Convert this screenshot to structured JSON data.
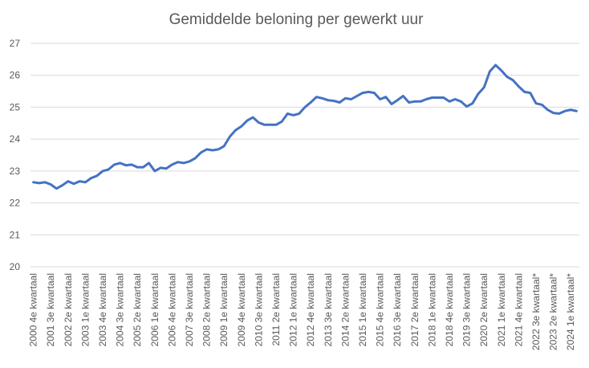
{
  "chart_data": {
    "type": "line",
    "title": "Gemiddelde beloning per gewerkt uur",
    "xlabel": "",
    "ylabel": "",
    "ylim": [
      20,
      27
    ],
    "yticks": [
      20,
      21,
      22,
      23,
      24,
      25,
      26,
      27
    ],
    "grid": true,
    "legend": "none",
    "color": "#4472C4",
    "x_start": "2000 4e kwartaal",
    "x_labels": [
      "2000 4e kwartaal",
      "2001 3e kwartaal",
      "2002 2e kwartaal",
      "2003 1e kwartaal",
      "2003 4e kwartaal",
      "2004 3e kwartaal",
      "2005 2e kwartaal",
      "2006 1e kwartaal",
      "2006 4e kwartaal",
      "2007 3e kwartaal",
      "2008 2e kwartaal",
      "2009 1e kwartaal",
      "2009 4e kwartaal",
      "2010 3e kwartaal",
      "2011 2e kwartaal",
      "2012 1e kwartaal",
      "2012 4e kwartaal",
      "2013 3e kwartaal",
      "2014 2e kwartaal",
      "2015 1e kwartaal",
      "2015 4e kwartaal",
      "2016 3e kwartaal",
      "2017 2e kwartaal",
      "2018 1e kwartaal",
      "2018 4e kwartaal",
      "2019 3e kwartaal",
      "2020 2e kwartaal",
      "2021 1e kwartaal",
      "2021 4e kwartaal",
      "2022 3e kwartaal*",
      "2023 2e kwartaal*",
      "2024 1e kwartaal*"
    ],
    "series": [
      {
        "values": [
          22.65,
          22.62,
          22.65,
          22.58,
          22.45,
          22.55,
          22.68,
          22.6,
          22.68,
          22.65,
          22.78,
          22.85,
          23.0,
          23.05,
          23.2,
          23.25,
          23.18,
          23.2,
          23.12,
          23.12,
          23.25,
          23.0,
          23.1,
          23.08,
          23.2,
          23.28,
          23.25,
          23.3,
          23.4,
          23.58,
          23.68,
          23.65,
          23.68,
          23.78,
          24.08,
          24.28,
          24.4,
          24.58,
          24.68,
          24.52,
          24.45,
          24.45,
          24.45,
          24.55,
          24.8,
          24.75,
          24.8,
          25.0,
          25.15,
          25.32,
          25.28,
          25.22,
          25.2,
          25.15,
          25.28,
          25.25,
          25.35,
          25.45,
          25.48,
          25.45,
          25.25,
          25.32,
          25.1,
          25.22,
          25.35,
          25.15,
          25.18,
          25.18,
          25.25,
          25.3,
          25.3,
          25.3,
          25.18,
          25.25,
          25.18,
          25.02,
          25.12,
          25.42,
          25.62,
          26.12,
          26.32,
          26.15,
          25.95,
          25.85,
          25.65,
          25.48,
          25.45,
          25.12,
          25.08,
          24.92,
          24.82,
          24.8,
          24.88,
          24.92,
          24.88
        ]
      }
    ]
  }
}
